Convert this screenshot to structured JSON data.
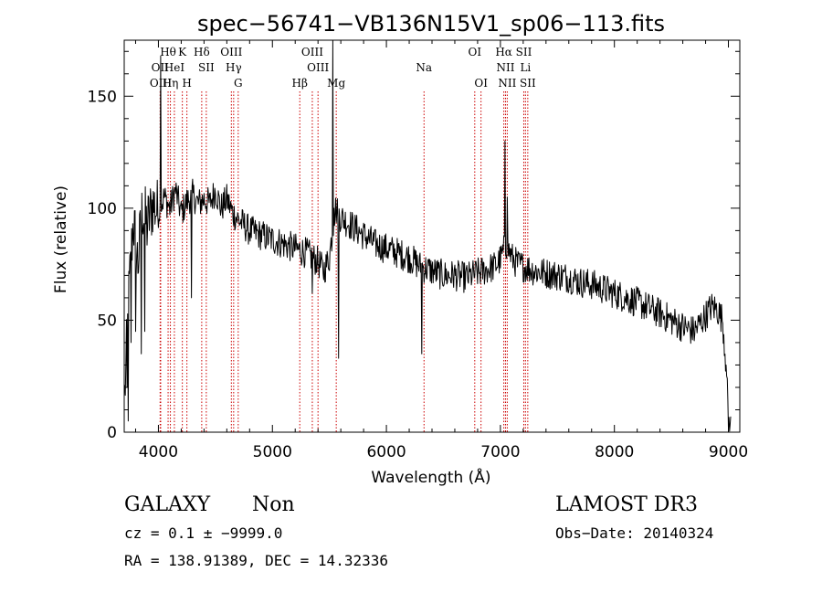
{
  "chart_data": {
    "type": "line",
    "title": "spec−56741−VB136N15V1_sp06−113.fits",
    "xlabel": "Wavelength (Å)",
    "ylabel": "Flux (relative)",
    "xlim": [
      3700,
      9100
    ],
    "ylim": [
      0,
      175
    ],
    "xticks": [
      4000,
      5000,
      6000,
      7000,
      8000,
      9000
    ],
    "yticks": [
      0,
      50,
      100,
      150
    ],
    "grid": false,
    "line_color": "#000000",
    "marker_color": "#cc0000",
    "spectrum_anchors": {
      "x": [
        3700,
        3740,
        3780,
        3820,
        3860,
        3900,
        3950,
        4000,
        4050,
        4100,
        4150,
        4200,
        4250,
        4300,
        4350,
        4400,
        4450,
        4500,
        4550,
        4600,
        4650,
        4700,
        4800,
        4900,
        5000,
        5100,
        5200,
        5300,
        5400,
        5450,
        5500,
        5550,
        5600,
        5650,
        5700,
        5800,
        5900,
        6000,
        6100,
        6200,
        6300,
        6400,
        6500,
        6600,
        6700,
        6800,
        6900,
        6950,
        7000,
        7050,
        7100,
        7150,
        7200,
        7300,
        7400,
        7500,
        7600,
        7700,
        7800,
        7900,
        8000,
        8200,
        8400,
        8600,
        8700,
        8800,
        8850,
        8900,
        8950,
        8980,
        9000,
        9020
      ],
      "y": [
        10,
        60,
        95,
        75,
        100,
        92,
        102,
        98,
        105,
        100,
        108,
        98,
        103,
        106,
        102,
        104,
        102,
        108,
        100,
        104,
        98,
        95,
        90,
        88,
        86,
        84,
        82,
        80,
        76,
        72,
        78,
        100,
        96,
        94,
        92,
        88,
        84,
        82,
        80,
        78,
        74,
        72,
        70,
        70,
        69,
        71,
        73,
        74,
        77,
        84,
        78,
        75,
        74,
        72,
        71,
        70,
        69,
        67,
        66,
        64,
        62,
        58,
        53,
        47,
        45,
        52,
        56,
        55,
        50,
        30,
        5,
        2
      ]
    },
    "spectrum_noise": 7,
    "spikes": [
      {
        "x": 3727,
        "y": 20
      },
      {
        "x": 3735,
        "y": 5
      },
      {
        "x": 3760,
        "y": 40
      },
      {
        "x": 3800,
        "y": 45
      },
      {
        "x": 3850,
        "y": 35
      },
      {
        "x": 3880,
        "y": 45
      },
      {
        "x": 4020,
        "y": 168
      },
      {
        "x": 4290,
        "y": 60
      },
      {
        "x": 5350,
        "y": 62
      },
      {
        "x": 5530,
        "y": 176
      },
      {
        "x": 5540,
        "y": 100
      },
      {
        "x": 5580,
        "y": 33
      },
      {
        "x": 6310,
        "y": 35
      },
      {
        "x": 7040,
        "y": 130
      },
      {
        "x": 7060,
        "y": 105
      },
      {
        "x": 8980,
        "y": 30
      }
    ],
    "line_markers": [
      {
        "x": 4015,
        "label": "OII",
        "row": 2
      },
      {
        "x": 4020,
        "label": "OIII",
        "row": 3
      },
      {
        "x": 4085,
        "label": "Hθ",
        "row": 1
      },
      {
        "x": 4105,
        "label": "Hη",
        "row": 3
      },
      {
        "x": 4140,
        "label": "HeI",
        "row": 2
      },
      {
        "x": 4210,
        "label": "K",
        "row": 1
      },
      {
        "x": 4250,
        "label": "H",
        "row": 3
      },
      {
        "x": 4380,
        "label": "Hδ",
        "row": 1
      },
      {
        "x": 4420,
        "label": "SII",
        "row": 2
      },
      {
        "x": 4640,
        "label": "OIII",
        "row": 1
      },
      {
        "x": 4660,
        "label": "Hγ",
        "row": 2
      },
      {
        "x": 4700,
        "label": "G",
        "row": 3
      },
      {
        "x": 5240,
        "label": "Hβ",
        "row": 3
      },
      {
        "x": 5350,
        "label": "OIII",
        "row": 1
      },
      {
        "x": 5400,
        "label": "OIII",
        "row": 2
      },
      {
        "x": 5560,
        "label": "Mg",
        "row": 3
      },
      {
        "x": 6330,
        "label": "Na",
        "row": 2
      },
      {
        "x": 6775,
        "label": "OI",
        "row": 1
      },
      {
        "x": 6830,
        "label": "OI",
        "row": 3
      },
      {
        "x": 7030,
        "label": "Hα",
        "row": 1
      },
      {
        "x": 7045,
        "label": "NII",
        "row": 2
      },
      {
        "x": 7060,
        "label": "NII",
        "row": 3
      },
      {
        "x": 7205,
        "label": "SII",
        "row": 1
      },
      {
        "x": 7220,
        "label": "Li",
        "row": 2
      },
      {
        "x": 7240,
        "label": "SII",
        "row": 3
      }
    ]
  },
  "info": {
    "classification": "GALAXY",
    "subclass": "Non",
    "redshift": "cz = 0.1 ± −9999.0",
    "coords": "RA = 138.91389, DEC =  14.32336",
    "survey": "LAMOST DR3",
    "obs_date": "Obs−Date: 20140324"
  }
}
